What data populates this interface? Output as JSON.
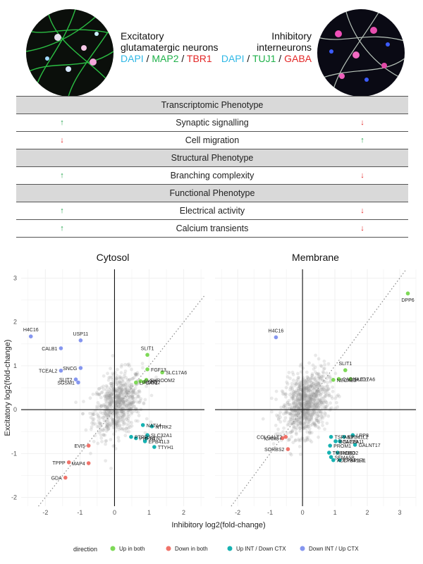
{
  "header": {
    "excitatory": {
      "title_line1": "Excitatory",
      "title_line2": "glutamatergic neurons",
      "stains": [
        {
          "label": "DAPI",
          "color": "#2fb8e6"
        },
        {
          "label": " / ",
          "color": "#111111"
        },
        {
          "label": "MAP2",
          "color": "#1fb14a"
        },
        {
          "label": " / ",
          "color": "#111111"
        },
        {
          "label": "TBR1",
          "color": "#e32626"
        }
      ]
    },
    "inhibitory": {
      "title_line1": "Inhibitory",
      "title_line2": "interneurons",
      "stains": [
        {
          "label": "DAPI",
          "color": "#2fb8e6"
        },
        {
          "label": " / ",
          "color": "#111111"
        },
        {
          "label": "TUJ1",
          "color": "#1fb14a"
        },
        {
          "label": " / ",
          "color": "#111111"
        },
        {
          "label": "GABA",
          "color": "#e32626"
        }
      ]
    }
  },
  "phenotype_table": {
    "up_symbol": "↑",
    "down_symbol": "↓",
    "sections": [
      {
        "title": "Transcriptomic Phenotype",
        "rows": [
          {
            "label": "Synaptic signalling",
            "excitatory": "up",
            "inhibitory": "down"
          },
          {
            "label": "Cell migration",
            "excitatory": "down",
            "inhibitory": "up"
          }
        ]
      },
      {
        "title": "Structural Phenotype",
        "rows": [
          {
            "label": "Branching complexity",
            "excitatory": "up",
            "inhibitory": "down"
          }
        ]
      },
      {
        "title": "Functional Phenotype",
        "rows": [
          {
            "label": "Electrical activity",
            "excitatory": "up",
            "inhibitory": "down"
          },
          {
            "label": "Calcium transients",
            "excitatory": "up",
            "inhibitory": "down"
          }
        ]
      }
    ]
  },
  "chart_data": {
    "type": "scatter",
    "xlabel": "Inhibitory log2(fold-change)",
    "ylabel": "Excitatory log2(fold-change)",
    "shared_y_axis": true,
    "grid": true,
    "diagonal_reference": "y = x (dotted)",
    "legend": {
      "title": "direction",
      "placement": "bottom",
      "entries": [
        {
          "label": "Up in both",
          "color": "#7ed957"
        },
        {
          "label": "Down in both",
          "color": "#f0736a"
        },
        {
          "label": "Up INT / Down CTX",
          "color": "#16b2b2"
        },
        {
          "label": "Down INT / Up CTX",
          "color": "#8596ef"
        }
      ]
    },
    "panels": [
      {
        "title": "Cytosol",
        "xlim": [
          -2.7,
          2.6
        ],
        "ylim": [
          -2.2,
          3.2
        ],
        "x_ticks": [
          -2,
          -1,
          0,
          1,
          2
        ],
        "x_tick_labels": [
          "-2",
          "-1",
          "0",
          "1",
          "2"
        ],
        "y_ticks": [
          -2,
          -1,
          0,
          1,
          2,
          3
        ],
        "y_tick_labels": [
          "-2",
          "-1",
          "0",
          "1",
          "2",
          "3"
        ],
        "points": [
          {
            "gene": "H4C16",
            "x": -2.42,
            "y": 1.67,
            "dir": "Down INT / Up CTX"
          },
          {
            "gene": "USP11",
            "x": -0.98,
            "y": 1.58,
            "dir": "Down INT / Up CTX"
          },
          {
            "gene": "CALB1",
            "x": -1.55,
            "y": 1.4,
            "dir": "Down INT / Up CTX"
          },
          {
            "gene": "TCEAL2",
            "x": -1.55,
            "y": 0.89,
            "dir": "Down INT / Up CTX"
          },
          {
            "gene": "SNCG",
            "x": -0.98,
            "y": 0.95,
            "dir": "Down INT / Up CTX"
          },
          {
            "gene": "SLIT2",
            "x": -1.12,
            "y": 0.69,
            "dir": "Down INT / Up CTX"
          },
          {
            "gene": "SGSM1",
            "x": -1.05,
            "y": 0.62,
            "dir": "Down INT / Up CTX"
          },
          {
            "gene": "SLIT1",
            "x": 0.95,
            "y": 1.25,
            "dir": "Up in both"
          },
          {
            "gene": "FGF13",
            "x": 0.95,
            "y": 0.92,
            "dir": "Up in both"
          },
          {
            "gene": "SLC17A6",
            "x": 1.38,
            "y": 0.85,
            "dir": "Up in both"
          },
          {
            "gene": "SHROOM2",
            "x": 0.92,
            "y": 0.68,
            "dir": "Up in both"
          },
          {
            "gene": "LPCAT1",
            "x": 0.62,
            "y": 0.62,
            "dir": "Up in both"
          },
          {
            "gene": "SYN3",
            "x": 0.75,
            "y": 0.65,
            "dir": "Up in both"
          },
          {
            "gene": "DLG2",
            "x": 0.85,
            "y": 0.63,
            "dir": "Up in both"
          },
          {
            "gene": "NAT14",
            "x": 0.82,
            "y": -0.35,
            "dir": "Up INT / Down CTX"
          },
          {
            "gene": "NTRK2",
            "x": 1.08,
            "y": -0.38,
            "dir": "Up INT / Down CTX"
          },
          {
            "gene": "SLC32A1",
            "x": 0.95,
            "y": -0.58,
            "dir": "Up INT / Down CTX"
          },
          {
            "gene": "RTN1",
            "x": 0.92,
            "y": -0.65,
            "dir": "Up INT / Down CTX"
          },
          {
            "gene": "EPB41L3",
            "x": 0.88,
            "y": -0.72,
            "dir": "Up INT / Down CTX"
          },
          {
            "gene": "PHF24",
            "x": 0.62,
            "y": -0.65,
            "dir": "Up INT / Down CTX"
          },
          {
            "gene": "TTYH1",
            "x": 1.15,
            "y": -0.85,
            "dir": "Up INT / Down CTX"
          },
          {
            "gene": "PTPRJ",
            "x": 0.48,
            "y": -0.62,
            "dir": "Up INT / Down CTX"
          },
          {
            "gene": "EVI5",
            "x": -0.75,
            "y": -0.82,
            "dir": "Down in both"
          },
          {
            "gene": "TPPP",
            "x": -1.32,
            "y": -1.2,
            "dir": "Down in both"
          },
          {
            "gene": "MAP4",
            "x": -0.75,
            "y": -1.22,
            "dir": "Down in both"
          },
          {
            "gene": "GDA",
            "x": -1.42,
            "y": -1.55,
            "dir": "Down in both"
          }
        ]
      },
      {
        "title": "Membrane",
        "xlim": [
          -2.7,
          3.5
        ],
        "ylim": [
          -2.2,
          3.2
        ],
        "x_ticks": [
          -2,
          -1,
          0,
          1,
          2,
          3
        ],
        "x_tick_labels": [
          "-2",
          "-1",
          "0",
          "1",
          "2",
          "3"
        ],
        "points": [
          {
            "gene": "DPP6",
            "x": 3.25,
            "y": 2.65,
            "dir": "Up in both"
          },
          {
            "gene": "H4C16",
            "x": -0.82,
            "y": 1.65,
            "dir": "Down INT / Up CTX"
          },
          {
            "gene": "SLIT1",
            "x": 1.32,
            "y": 0.9,
            "dir": "Up in both"
          },
          {
            "gene": "NECAB2",
            "x": 0.95,
            "y": 0.68,
            "dir": "Up in both"
          },
          {
            "gene": "SLC17A6",
            "x": 1.48,
            "y": 0.7,
            "dir": "Up in both"
          },
          {
            "gene": "CACNA2D1",
            "x": 1.12,
            "y": 0.7,
            "dir": "Up in both"
          },
          {
            "gene": "TSPAN3",
            "x": 0.88,
            "y": -0.62,
            "dir": "Up INT / Down CTX"
          },
          {
            "gene": "EPB41L2",
            "x": 1.28,
            "y": -0.62,
            "dir": "Up INT / Down CTX"
          },
          {
            "gene": "LRP8",
            "x": 1.55,
            "y": -0.58,
            "dir": "Up INT / Down CTX"
          },
          {
            "gene": "BCAP29",
            "x": 1.02,
            "y": -0.72,
            "dir": "Up INT / Down CTX"
          },
          {
            "gene": "SLC6A11",
            "x": 1.15,
            "y": -0.72,
            "dir": "Up INT / Down CTX"
          },
          {
            "gene": "PROM1",
            "x": 0.85,
            "y": -0.82,
            "dir": "Up INT / Down CTX"
          },
          {
            "gene": "GALNT17",
            "x": 1.62,
            "y": -0.8,
            "dir": "Up INT / Down CTX"
          },
          {
            "gene": "TMEM163",
            "x": 0.82,
            "y": -0.98,
            "dir": "Up INT / Down CTX"
          },
          {
            "gene": "ROBO2",
            "x": 1.08,
            "y": -0.98,
            "dir": "Up INT / Down CTX"
          },
          {
            "gene": "SEMA5B",
            "x": 0.88,
            "y": -1.08,
            "dir": "Up INT / Down CTX"
          },
          {
            "gene": "ADCYAP1R1",
            "x": 0.95,
            "y": -1.15,
            "dir": "Up INT / Down CTX"
          },
          {
            "gene": "EPB41L3",
            "x": 1.15,
            "y": -1.15,
            "dir": "Up INT / Down CTX"
          },
          {
            "gene": "COLGALT2",
            "x": -0.52,
            "y": -0.62,
            "dir": "Down in both"
          },
          {
            "gene": "ICAM5",
            "x": -0.62,
            "y": -0.65,
            "dir": "Down in both"
          },
          {
            "gene": "SORBS2",
            "x": -0.45,
            "y": -0.9,
            "dir": "Down in both"
          }
        ]
      }
    ]
  }
}
